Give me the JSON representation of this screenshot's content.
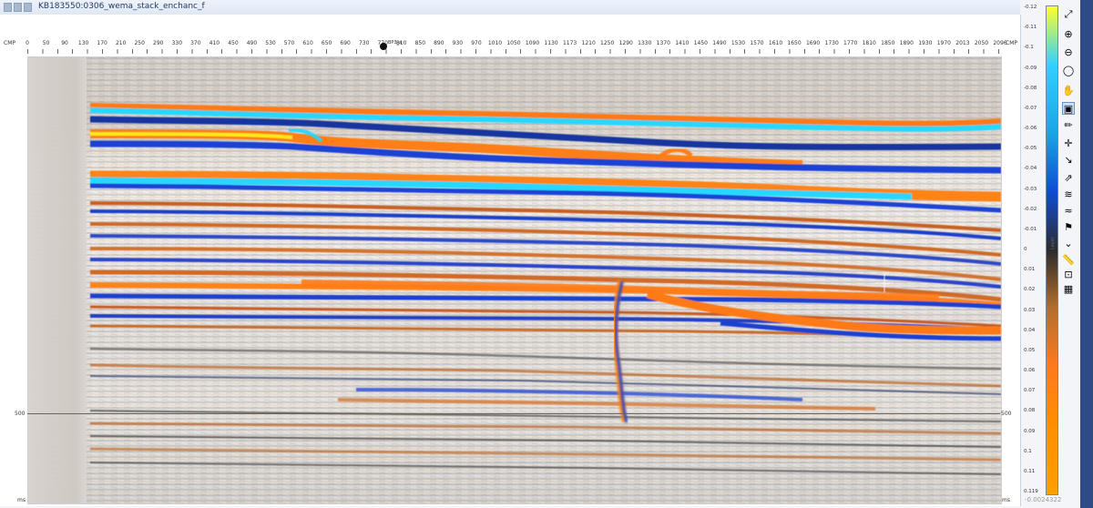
{
  "window_title": "KB183550:0306_wema_stack_enchanc_f",
  "axis": {
    "cmp_label": "CMP",
    "ticks": [
      "0",
      "50",
      "90",
      "130",
      "170",
      "210",
      "250",
      "290",
      "330",
      "370",
      "410",
      "450",
      "490",
      "530",
      "570",
      "610",
      "650",
      "690",
      "730",
      "770",
      "810",
      "850",
      "890",
      "930",
      "970",
      "1010",
      "1050",
      "1090",
      "1130",
      "1173",
      "1210",
      "1250",
      "1290",
      "1330",
      "1370",
      "1410",
      "1450",
      "1490",
      "1530",
      "1570",
      "1610",
      "1650",
      "1690",
      "1730",
      "1770",
      "1810",
      "1850",
      "1890",
      "1930",
      "1970",
      "2013",
      "2050",
      "2096"
    ],
    "well_label": "BP3_a",
    "time_label": "ms",
    "time_tick": "500"
  },
  "colorbar": {
    "labels": [
      "-0.12",
      "-0.11",
      "-0.1",
      "-0.09",
      "-0.08",
      "-0.07",
      "-0.06",
      "-0.05",
      "-0.04",
      "-0.03",
      "-0.02",
      "-0.01",
      "0",
      "0.01",
      "0.02",
      "0.03",
      "0.04",
      "0.05",
      "0.06",
      "0.07",
      "0.08",
      "0.09",
      "0.1",
      "0.11",
      "0.119"
    ],
    "title": "Layer",
    "bottom_value": "-0.0024322"
  },
  "toolbar": [
    {
      "name": "fit-view-icon",
      "glyph": "⤢"
    },
    {
      "name": "zoom-in-icon",
      "glyph": "⊕"
    },
    {
      "name": "zoom-out-icon",
      "glyph": "⊖"
    },
    {
      "name": "zoom-reset-icon",
      "glyph": "◯"
    },
    {
      "name": "pan-icon",
      "glyph": "✋"
    },
    {
      "name": "select-icon",
      "glyph": "▣",
      "active": true
    },
    {
      "name": "pencil-icon",
      "glyph": "✏"
    },
    {
      "name": "crosshair-icon",
      "glyph": "✛"
    },
    {
      "name": "arrow-icon",
      "glyph": "↘"
    },
    {
      "name": "fault-icon",
      "glyph": "⇗"
    },
    {
      "name": "layers-icon",
      "glyph": "≋"
    },
    {
      "name": "horizon-icon",
      "glyph": "≈"
    },
    {
      "name": "attribute-icon",
      "glyph": "⚑"
    },
    {
      "name": "chevron-down-icon",
      "glyph": "⌄"
    },
    {
      "name": "ruler-icon",
      "glyph": "📏"
    },
    {
      "name": "frame-icon",
      "glyph": "⊡"
    },
    {
      "name": "grid-icon",
      "glyph": "▦"
    }
  ],
  "colors": {
    "horizon_blue": "#1b43d6",
    "horizon_cyan": "#22d7ff",
    "horizon_orange": "#ff7b18",
    "horizon_yellow": "#ffef28",
    "dark_line": "#444444"
  }
}
